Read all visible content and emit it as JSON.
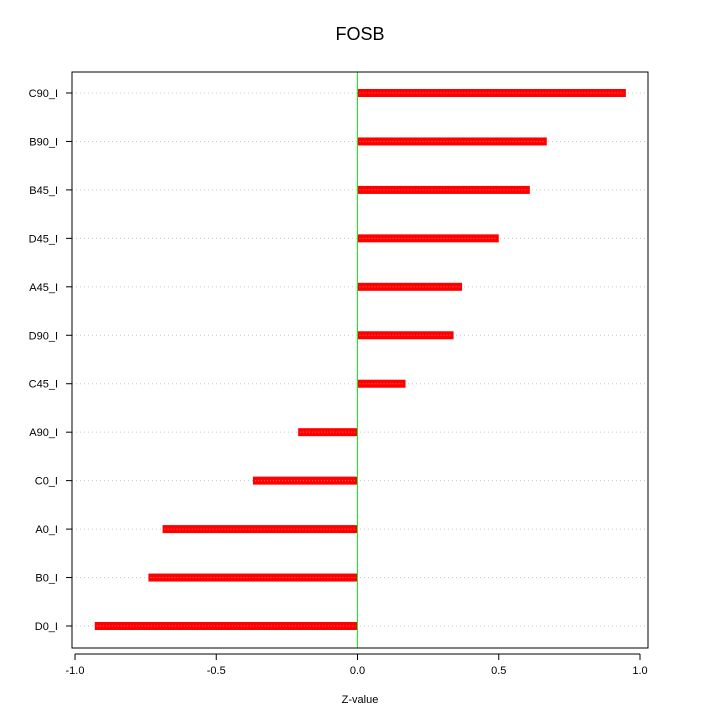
{
  "chart_data": {
    "type": "bar",
    "orientation": "horizontal",
    "title": "FOSB",
    "xlabel": "Z-value",
    "ylabel": "",
    "xlim": [
      -1.0,
      1.0
    ],
    "x_ticks": [
      -1.0,
      -0.5,
      0.0,
      0.5,
      1.0
    ],
    "x_tick_labels": [
      "-1.0",
      "-0.5",
      "0.0",
      "0.5",
      "1.0"
    ],
    "categories": [
      "C90_I",
      "B90_I",
      "B45_I",
      "D45_I",
      "A45_I",
      "D90_I",
      "C45_I",
      "A90_I",
      "C0_I",
      "A0_I",
      "B0_I",
      "D0_I"
    ],
    "values": [
      0.95,
      0.67,
      0.61,
      0.5,
      0.37,
      0.34,
      0.17,
      -0.21,
      -0.37,
      -0.69,
      -0.74,
      -0.93
    ],
    "grid": "horizontal dotted",
    "zero_line": true,
    "colors": {
      "bar": "#ff0000",
      "bar_highlight": "#ff6666",
      "zero_line": "#00ff00",
      "grid": "#c8c8c8",
      "axis": "#000000"
    }
  }
}
